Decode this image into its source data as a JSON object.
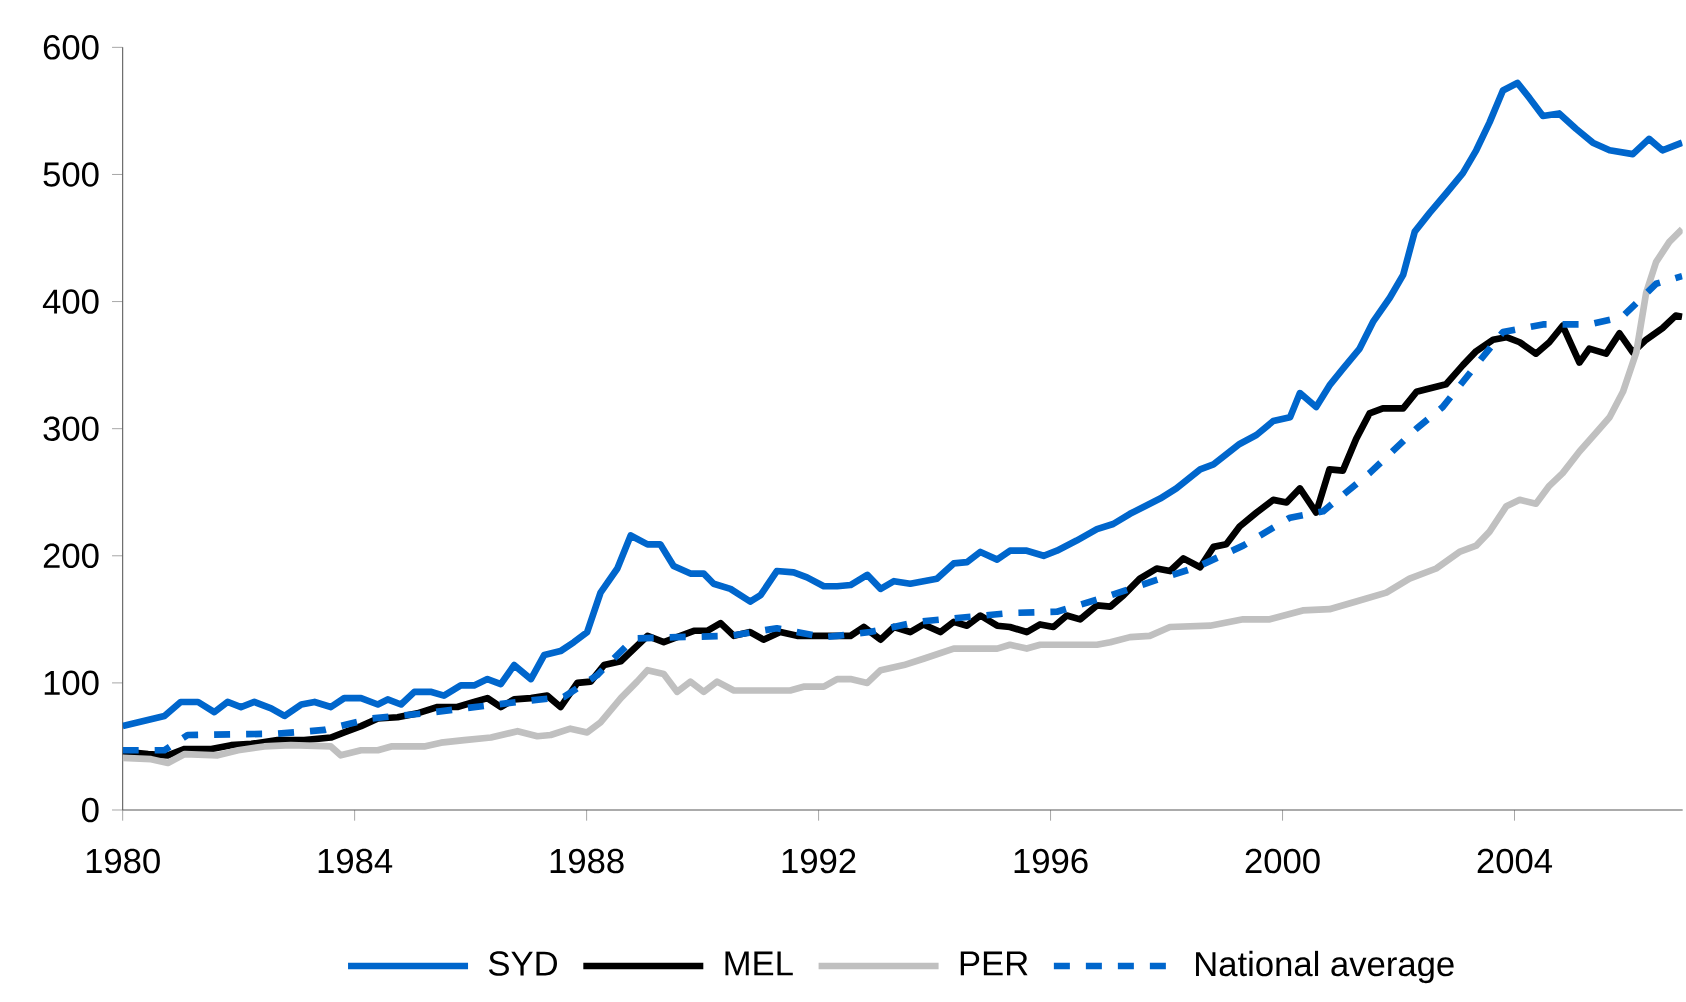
{
  "chart_data": {
    "type": "line",
    "xlim": [
      1980,
      2006.9
    ],
    "ylim": [
      0,
      600
    ],
    "xticks": [
      1980,
      1984,
      1988,
      1992,
      1996,
      2000,
      2004
    ],
    "yticks": [
      0,
      100,
      200,
      300,
      400,
      500,
      600
    ],
    "grid": false,
    "legend": "bottom",
    "marker": "none",
    "series": [
      {
        "name": "SYD",
        "color": "#0066cc",
        "line_style": "solid",
        "x": [
          1980,
          1980.72,
          1981.0,
          1981.3,
          1981.58,
          1981.81,
          1982.04,
          1982.27,
          1982.56,
          1982.79,
          1983.08,
          1983.31,
          1983.59,
          1983.82,
          1984.11,
          1984.4,
          1984.57,
          1984.8,
          1985.03,
          1985.31,
          1985.54,
          1985.83,
          1986.06,
          1986.29,
          1986.52,
          1986.75,
          1987.04,
          1987.27,
          1987.55,
          1987.78,
          1988.01,
          1988.24,
          1988.53,
          1988.76,
          1989.05,
          1989.27,
          1989.5,
          1989.79,
          1990.02,
          1990.19,
          1990.48,
          1990.82,
          1991.0,
          1991.28,
          1991.57,
          1991.8,
          1992.09,
          1992.32,
          1992.55,
          1992.84,
          1993.07,
          1993.3,
          1993.58,
          1994.04,
          1994.33,
          1994.56,
          1994.79,
          1995.08,
          1995.3,
          1995.59,
          1995.88,
          1996.11,
          1996.45,
          1996.8,
          1997.08,
          1997.37,
          1997.89,
          1998.17,
          1998.58,
          1998.81,
          1999.26,
          1999.55,
          1999.84,
          2000.13,
          2000.3,
          2000.58,
          2000.81,
          2001.04,
          2001.33,
          2001.56,
          2001.85,
          2002.08,
          2002.28,
          2002.54,
          2002.82,
          2003.11,
          2003.34,
          2003.57,
          2003.8,
          2004.05,
          2004.26,
          2004.49,
          2004.77,
          2005.06,
          2005.35,
          2005.64,
          2006.04,
          2006.32,
          2006.55,
          2006.89
        ],
        "values": [
          66,
          74,
          85,
          85,
          77,
          85,
          81,
          85,
          80,
          74,
          83,
          85,
          81,
          88,
          88,
          83,
          87,
          83,
          93,
          93,
          90,
          98,
          98,
          103,
          99,
          114,
          103,
          122,
          125,
          132,
          140,
          171,
          190,
          216,
          209,
          209,
          192,
          186,
          186,
          178,
          174,
          164,
          169,
          188,
          187,
          183,
          176,
          176,
          177,
          185,
          174,
          180,
          178,
          182,
          194,
          195,
          203,
          197,
          204,
          204,
          200,
          204,
          212,
          221,
          225,
          233,
          245,
          253,
          268,
          272,
          288,
          295,
          306,
          309,
          328,
          317,
          334,
          347,
          363,
          384,
          403,
          421,
          455,
          470,
          485,
          501,
          519,
          541,
          566,
          572,
          560,
          546,
          548,
          536,
          525,
          519,
          516,
          528,
          519,
          525
        ]
      },
      {
        "name": "MEL",
        "color": "#000000",
        "line_style": "solid",
        "x": [
          1980,
          1980.44,
          1980.78,
          1981.07,
          1981.53,
          1981.87,
          1982.22,
          1982.67,
          1983.13,
          1983.59,
          1983.82,
          1984.11,
          1984.4,
          1984.74,
          1985.08,
          1985.43,
          1985.77,
          1986.06,
          1986.29,
          1986.52,
          1986.75,
          1987.04,
          1987.32,
          1987.55,
          1987.84,
          1988.07,
          1988.3,
          1988.59,
          1988.82,
          1989.05,
          1989.33,
          1989.56,
          1989.85,
          1990.08,
          1990.31,
          1990.54,
          1990.82,
          1991.05,
          1991.34,
          1991.63,
          1991.97,
          1992.32,
          1992.55,
          1992.78,
          1993.07,
          1993.3,
          1993.58,
          1993.81,
          1994.1,
          1994.33,
          1994.56,
          1994.79,
          1995.08,
          1995.3,
          1995.59,
          1995.82,
          1996.05,
          1996.28,
          1996.51,
          1996.8,
          1997.03,
          1997.26,
          1997.54,
          1997.83,
          1998.06,
          1998.29,
          1998.58,
          1998.81,
          1999.03,
          1999.26,
          1999.55,
          1999.84,
          2000.07,
          2000.3,
          2000.58,
          2000.81,
          2001.04,
          2001.27,
          2001.5,
          2001.73,
          2002.08,
          2002.31,
          2002.82,
          2003.11,
          2003.34,
          2003.63,
          2003.86,
          2004.09,
          2004.37,
          2004.6,
          2004.83,
          2005.12,
          2005.29,
          2005.58,
          2005.81,
          2006.04,
          2006.27,
          2006.55,
          2006.78,
          2006.89
        ],
        "values": [
          46,
          44,
          43,
          48,
          48,
          51,
          52,
          55,
          55,
          57,
          61,
          66,
          72,
          73,
          76,
          81,
          81,
          85,
          88,
          81,
          87,
          88,
          90,
          81,
          100,
          101,
          114,
          117,
          127,
          137,
          132,
          136,
          141,
          141,
          147,
          137,
          140,
          134,
          140,
          137,
          137,
          137,
          137,
          144,
          134,
          144,
          140,
          146,
          140,
          148,
          145,
          153,
          145,
          144,
          140,
          146,
          144,
          153,
          150,
          161,
          160,
          169,
          182,
          190,
          188,
          198,
          191,
          207,
          209,
          223,
          234,
          244,
          242,
          253,
          234,
          268,
          267,
          292,
          312,
          316,
          316,
          329,
          335,
          350,
          361,
          370,
          372,
          368,
          359,
          368,
          381,
          352,
          363,
          359,
          375,
          360,
          370,
          379,
          389,
          388
        ]
      },
      {
        "name": "PER",
        "color": "#c0c0c0",
        "line_style": "solid",
        "x": [
          1980,
          1980.49,
          1980.78,
          1981.07,
          1981.64,
          1981.99,
          1982.44,
          1982.9,
          1983.59,
          1983.76,
          1984.11,
          1984.4,
          1984.63,
          1985.2,
          1985.49,
          1985.89,
          1986.35,
          1986.81,
          1987.15,
          1987.38,
          1987.72,
          1988.01,
          1988.24,
          1988.59,
          1988.87,
          1989.05,
          1989.33,
          1989.56,
          1989.79,
          1990.02,
          1990.25,
          1990.54,
          1990.94,
          1991.51,
          1991.74,
          1992.09,
          1992.32,
          1992.55,
          1992.84,
          1993.07,
          1993.47,
          1993.81,
          1994.33,
          1995.08,
          1995.3,
          1995.59,
          1995.82,
          1996.8,
          1997.03,
          1997.37,
          1997.71,
          1998.06,
          1998.75,
          1999.32,
          1999.78,
          2000.35,
          2000.81,
          2001.27,
          2001.79,
          2002.19,
          2002.65,
          2003.05,
          2003.34,
          2003.57,
          2003.86,
          2004.09,
          2004.37,
          2004.6,
          2004.83,
          2005.12,
          2005.41,
          2005.64,
          2005.87,
          2006.1,
          2006.27,
          2006.44,
          2006.67,
          2006.89
        ],
        "values": [
          41,
          40,
          37,
          44,
          43,
          47,
          50,
          51,
          50,
          43,
          47,
          47,
          50,
          50,
          53,
          55,
          57,
          62,
          58,
          59,
          64,
          61,
          69,
          88,
          101,
          110,
          107,
          93,
          101,
          93,
          101,
          94,
          94,
          94,
          97,
          97,
          103,
          103,
          100,
          110,
          114,
          119,
          127,
          127,
          130,
          127,
          130,
          130,
          132,
          136,
          137,
          144,
          145,
          150,
          150,
          157,
          158,
          164,
          171,
          182,
          190,
          203,
          208,
          219,
          239,
          244,
          241,
          255,
          265,
          282,
          297,
          309,
          329,
          360,
          407,
          431,
          447,
          457
        ]
      },
      {
        "name": "National average",
        "color": "#0066cc",
        "line_style": "dashed",
        "x": [
          1980,
          1980.72,
          1981.12,
          1982.67,
          1983.48,
          1984.28,
          1985.2,
          1985.89,
          1986.81,
          1987.61,
          1988.18,
          1988.82,
          1989.56,
          1990.48,
          1991.28,
          1992.09,
          1992.32,
          1992.89,
          1993.69,
          1995.3,
          1996.11,
          1996.91,
          1997.83,
          1998.52,
          1999.32,
          2000.13,
          2000.7,
          2001.5,
          2002.31,
          2002.76,
          2003.34,
          2003.8,
          2004.49,
          2005.29,
          2005.86,
          2006.44,
          2006.89
        ],
        "values": [
          47,
          47,
          59,
          60,
          63,
          72,
          76,
          80,
          85,
          89,
          106,
          135,
          136,
          137,
          143,
          136,
          137,
          140,
          148,
          155,
          156,
          167,
          181,
          191,
          208,
          230,
          235,
          265,
          300,
          317,
          350,
          376,
          382,
          382,
          388,
          414,
          420
        ]
      }
    ]
  }
}
